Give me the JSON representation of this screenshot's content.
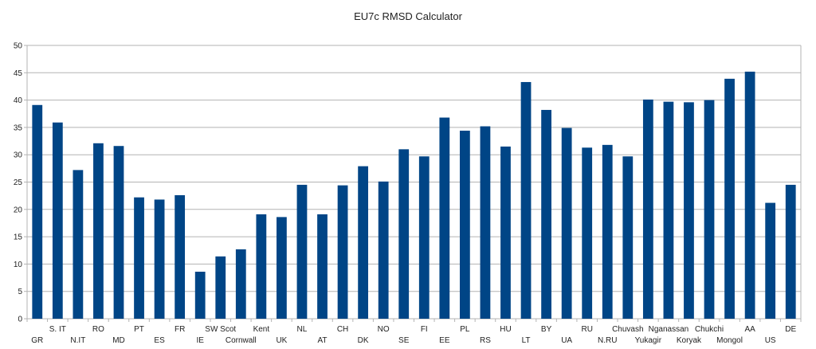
{
  "chart_data": {
    "type": "bar",
    "title": "EU7c RMSD Calculator",
    "xlabel": "",
    "ylabel": "",
    "ylim": [
      0,
      50
    ],
    "yticks": [
      0,
      5,
      10,
      15,
      20,
      25,
      30,
      35,
      40,
      45,
      50
    ],
    "grid": true,
    "legend": "none",
    "bar_color": "#004586",
    "categories": [
      "GR",
      "S. IT",
      "N.IT",
      "RO",
      "MD",
      "PT",
      "ES",
      "FR",
      "IE",
      "SW Scot",
      "Cornwall",
      "Kent",
      "UK",
      "NL",
      "AT",
      "CH",
      "DK",
      "NO",
      "SE",
      "FI",
      "EE",
      "PL",
      "RS",
      "HU",
      "LT",
      "BY",
      "UA",
      "RU",
      "N.RU",
      "Chuvash",
      "Yukagir",
      "Nganassan",
      "Koryak",
      "Chukchi",
      "Mongol",
      "AA",
      "US",
      "DE"
    ],
    "values": [
      39.1,
      35.9,
      27.2,
      32.1,
      31.6,
      22.2,
      21.8,
      22.6,
      8.6,
      11.4,
      12.7,
      19.1,
      18.6,
      24.5,
      19.1,
      24.4,
      27.9,
      25.1,
      31.0,
      29.7,
      36.8,
      34.4,
      35.2,
      31.5,
      43.3,
      38.2,
      34.9,
      31.3,
      31.8,
      29.7,
      40.1,
      39.7,
      39.6,
      40.0,
      43.9,
      45.2,
      21.2,
      24.5
    ]
  }
}
